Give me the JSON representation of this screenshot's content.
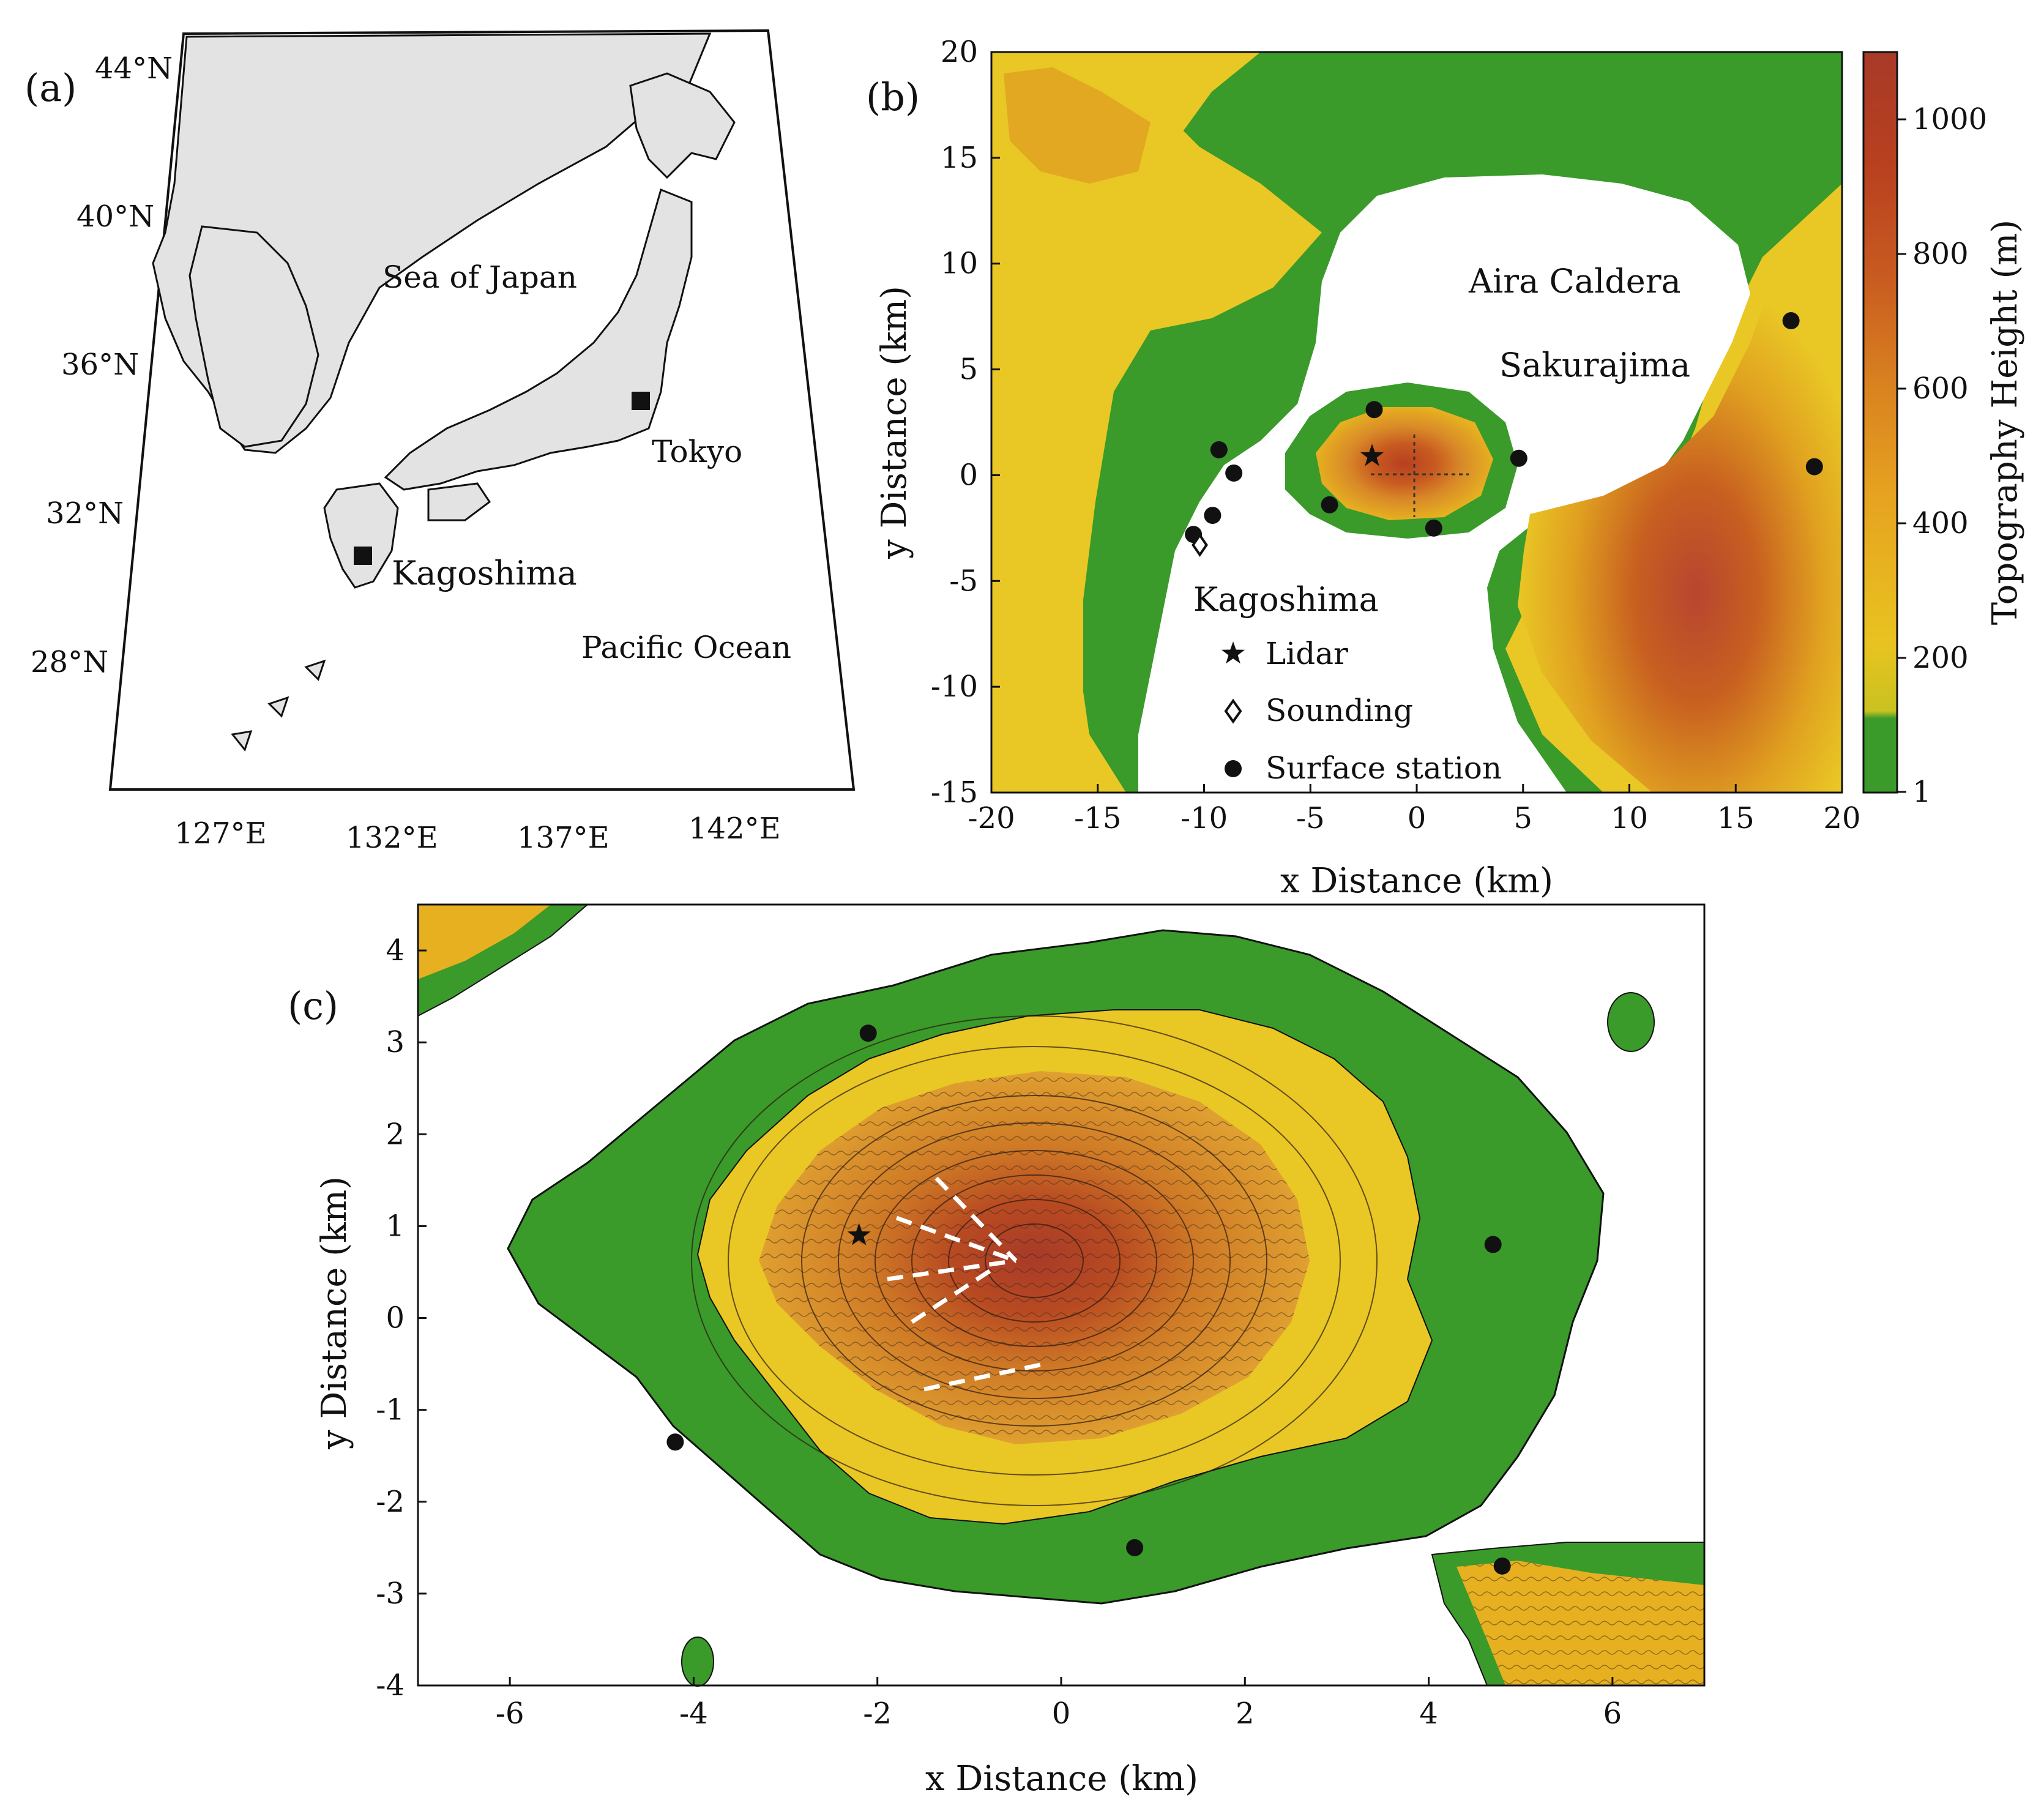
{
  "panel_a": {
    "label": "(a)",
    "lat_labels": [
      "44°N",
      "40°N",
      "36°N",
      "32°N",
      "28°N"
    ],
    "lon_labels": [
      "127°E",
      "132°E",
      "137°E",
      "142°E"
    ],
    "places": {
      "sea_of_japan": "Sea of Japan",
      "tokyo": "Tokyo",
      "kagoshima": "Kagoshima",
      "pacific_ocean": "Pacific Ocean"
    },
    "land_color": "#e3e3e3",
    "marker_icon": "square-marker-icon"
  },
  "panel_b": {
    "label": "(b)",
    "xlabel": "x Distance (km)",
    "ylabel": "y Distance (km)",
    "x_ticks": [
      "-20",
      "-15",
      "-10",
      "-5",
      "0",
      "5",
      "10",
      "15",
      "20"
    ],
    "y_ticks": [
      "20",
      "15",
      "10",
      "5",
      "0",
      "-5",
      "-10",
      "-15"
    ],
    "xlim": [
      -20,
      20
    ],
    "ylim": [
      -15,
      20
    ],
    "places": {
      "aira_caldera": "Aira Caldera",
      "sakurajima": "Sakurajima",
      "kagoshima": "Kagoshima"
    },
    "legend": [
      {
        "symbol": "star-icon",
        "label": "Lidar"
      },
      {
        "symbol": "diamond-icon",
        "label": "Sounding"
      },
      {
        "symbol": "dot-icon",
        "label": "Surface station"
      }
    ],
    "colorbar": {
      "label": "Topography Height (m)",
      "ticks": [
        "1000",
        "800",
        "600",
        "400",
        "200",
        "1"
      ],
      "colors": [
        "#3a9a2a",
        "#c9c220",
        "#e8c320",
        "#e6a320",
        "#d98220",
        "#c85a20",
        "#b8401f",
        "#a83a28"
      ]
    },
    "lidar": {
      "x": -2.1,
      "y": 0.9
    },
    "sounding": {
      "x": -10.2,
      "y": -3.3
    },
    "stations": [
      {
        "x": -2.0,
        "y": 3.1
      },
      {
        "x": -9.3,
        "y": 1.2
      },
      {
        "x": -8.6,
        "y": 0.1
      },
      {
        "x": -4.1,
        "y": -1.4
      },
      {
        "x": -9.6,
        "y": -1.9
      },
      {
        "x": -10.5,
        "y": -2.8
      },
      {
        "x": 0.8,
        "y": -2.5
      },
      {
        "x": 4.8,
        "y": 0.8
      },
      {
        "x": 17.6,
        "y": 7.3
      },
      {
        "x": 18.7,
        "y": 0.4
      }
    ]
  },
  "panel_c": {
    "label": "(c)",
    "xlabel": "x Distance (km)",
    "ylabel": "y Distance (km)",
    "x_ticks": [
      "-6",
      "-4",
      "-2",
      "0",
      "2",
      "4",
      "6"
    ],
    "y_ticks": [
      "4",
      "3",
      "2",
      "1",
      "0",
      "-1",
      "-2",
      "-3",
      "-4"
    ],
    "xlim": [
      -7,
      7
    ],
    "ylim": [
      -4,
      4.5
    ],
    "lidar": {
      "x": -2.2,
      "y": 0.9
    },
    "stations": [
      {
        "x": -2.1,
        "y": 3.1
      },
      {
        "x": 4.7,
        "y": 0.8
      },
      {
        "x": -4.2,
        "y": -1.35
      },
      {
        "x": 0.8,
        "y": -2.5
      },
      {
        "x": 4.8,
        "y": -2.7
      }
    ]
  }
}
